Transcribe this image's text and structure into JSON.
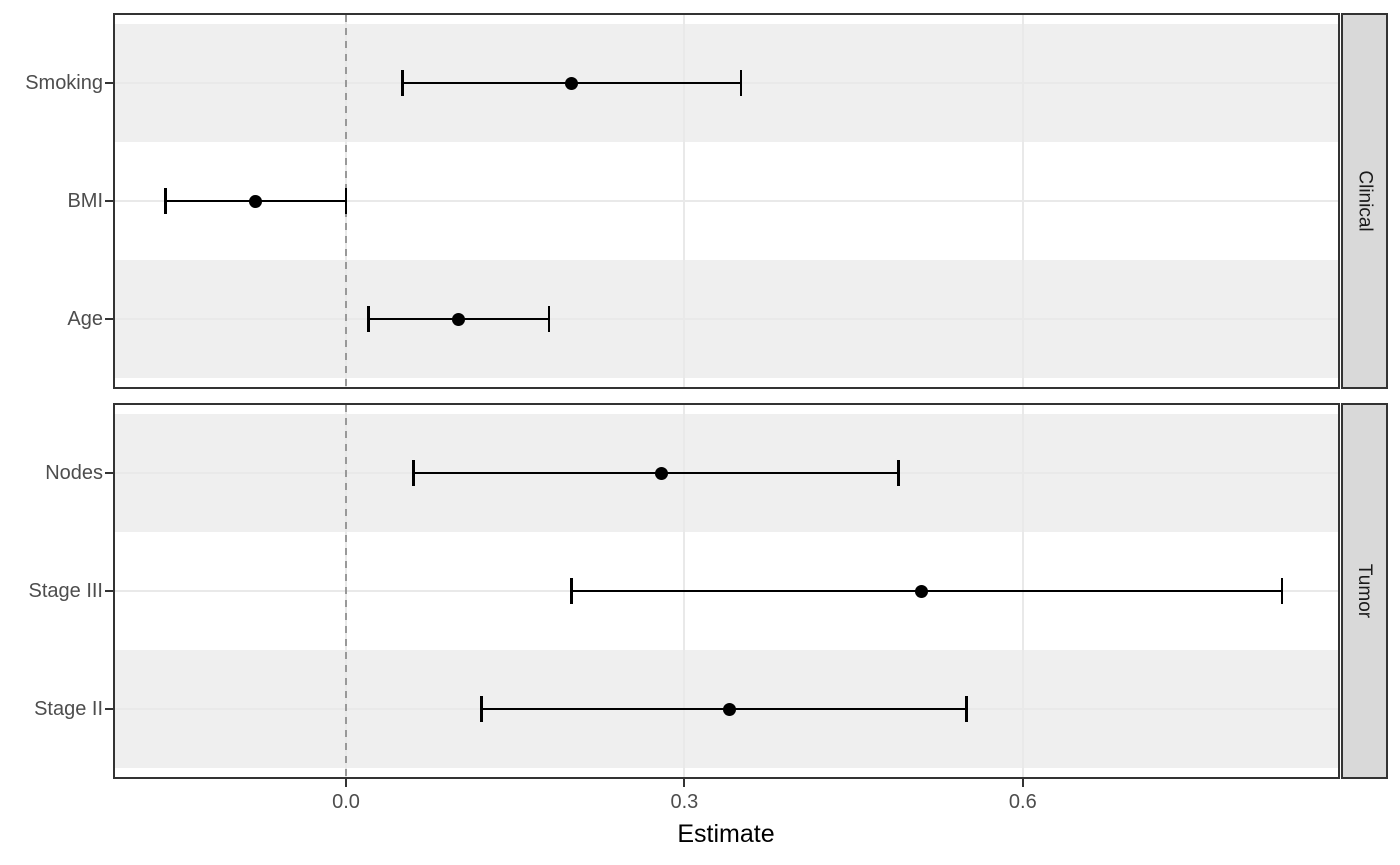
{
  "chart_data": {
    "type": "scatter",
    "subtype": "forest-plot-pointrange",
    "title": "",
    "xlabel": "Estimate",
    "ylabel": "",
    "legend_position": "none",
    "x_ticks": [
      {
        "value": 0.0,
        "label": "0.0"
      },
      {
        "value": 0.3,
        "label": "0.3"
      },
      {
        "value": 0.6,
        "label": "0.6"
      }
    ],
    "xlim": [
      -0.205,
      0.879
    ],
    "reference_line_x": 0.0,
    "reference_line_style": "dashed",
    "grid": "major vertical gridlines at x ticks; faint horizontal gridline at each category; alternating shaded row stripes",
    "facets": [
      {
        "label": "Clinical",
        "rows": [
          {
            "label": "Smoking",
            "estimate": 0.2,
            "lower": 0.05,
            "upper": 0.35
          },
          {
            "label": "BMI",
            "estimate": -0.08,
            "lower": -0.16,
            "upper": 0.0
          },
          {
            "label": "Age",
            "estimate": 0.1,
            "lower": 0.02,
            "upper": 0.18
          }
        ]
      },
      {
        "label": "Tumor",
        "rows": [
          {
            "label": "Nodes",
            "estimate": 0.28,
            "lower": 0.06,
            "upper": 0.49
          },
          {
            "label": "Stage III",
            "estimate": 0.51,
            "lower": 0.2,
            "upper": 0.83
          },
          {
            "label": "Stage II",
            "estimate": 0.34,
            "lower": 0.12,
            "upper": 0.55
          }
        ]
      }
    ],
    "colors": {
      "point": "#000000",
      "error_bar": "#000000",
      "stripe": "#EFEFEF",
      "panel_background": "#FFFFFF",
      "panel_border": "#333333",
      "strip_background": "#D9D9D9",
      "strip_text": "#1A1A1A",
      "grid": "#E9E9E9",
      "reference_line": "#999999",
      "axis_text": "#4D4D4D",
      "axis_title": "#000000"
    }
  }
}
